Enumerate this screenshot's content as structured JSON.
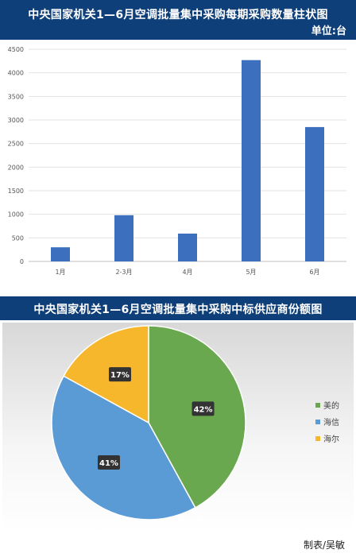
{
  "charts": {
    "bar_title": "中央国家机关1—6月空调批量集中采购每期采购数量柱状图",
    "bar_unit": "单位:台",
    "pie_title": "中央国家机关1—6月空调批量集中采购中标供应商份额图"
  },
  "credit": "制表/吴敏",
  "colors": {
    "header_bg": "#0f3f78",
    "bar": "#3d6fbf",
    "pie_green": "#6aa84f",
    "pie_blue": "#5b9bd5",
    "pie_yellow": "#f6b72c"
  },
  "chart_data": [
    {
      "type": "bar",
      "title": "中央国家机关1—6月空调批量集中采购每期采购数量柱状图",
      "unit": "单位:台",
      "categories": [
        "1月",
        "2-3月",
        "4月",
        "5月",
        "6月"
      ],
      "values": [
        300,
        980,
        590,
        4270,
        2850
      ],
      "ylim": [
        0,
        4500
      ],
      "yticks": [
        0,
        500,
        1000,
        1500,
        2000,
        2500,
        3000,
        3500,
        4000,
        4500
      ],
      "grid": true,
      "legend": "none"
    },
    {
      "type": "pie",
      "title": "中央国家机关1—6月空调批量集中采购中标供应商份额图",
      "labels": [
        "美的",
        "海信",
        "海尔"
      ],
      "values": [
        42,
        41,
        17
      ],
      "value_labels": [
        "42%",
        "41%",
        "17%"
      ],
      "colors": [
        "#6aa84f",
        "#5b9bd5",
        "#f6b72c"
      ],
      "legend": "right"
    }
  ]
}
